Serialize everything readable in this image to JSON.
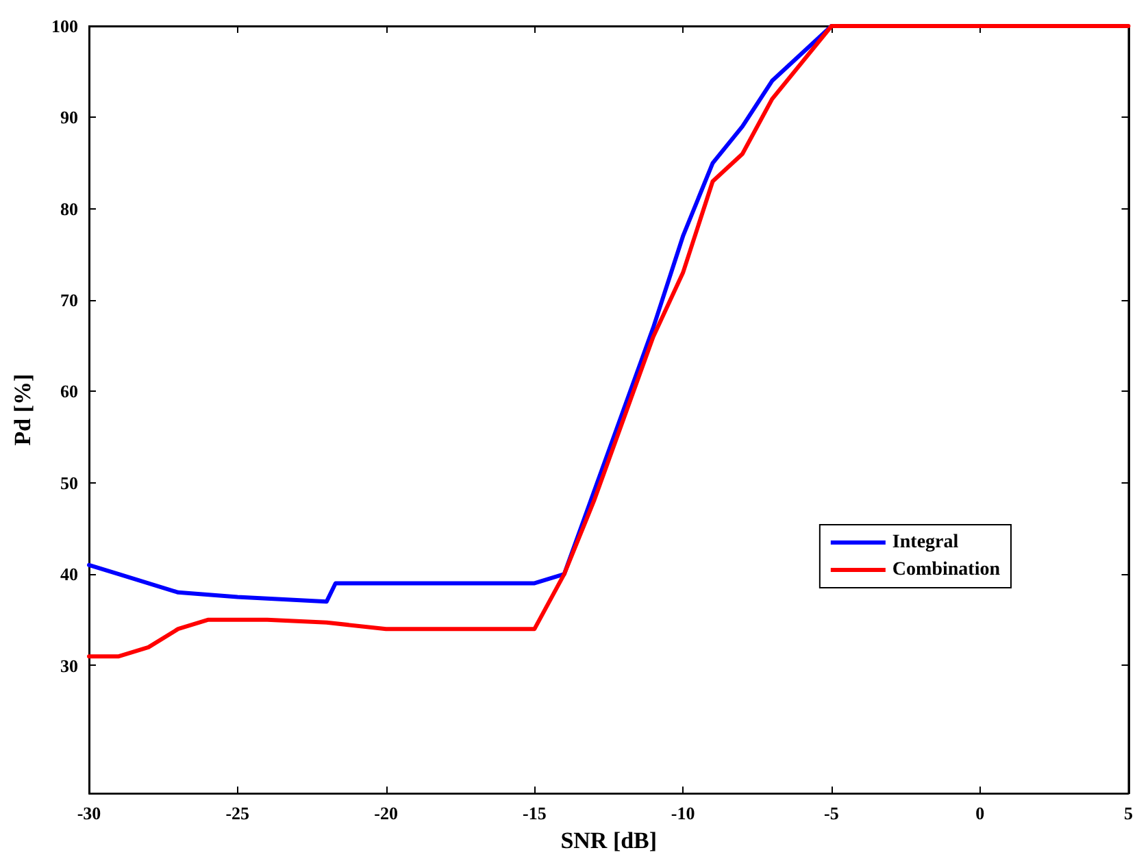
{
  "chart_data": {
    "type": "line",
    "xlabel": "SNR [dB]",
    "ylabel": "Pd [%]",
    "xlim": [
      -30,
      5
    ],
    "xticks": [
      -30,
      -25,
      -20,
      -15,
      -10,
      -5,
      0,
      5
    ],
    "ylim": [
      16,
      100
    ],
    "yticks": [
      30,
      40,
      50,
      60,
      70,
      80,
      90,
      100
    ],
    "grid": false,
    "legend": "right",
    "marker": "none",
    "line_style": "solid",
    "series": [
      {
        "name": "Integral",
        "color": "#0000ff",
        "x": [
          -30,
          -29,
          -27,
          -25,
          -22,
          -21.7,
          -15,
          -14,
          -13,
          -12,
          -11,
          -10,
          -9,
          -8,
          -7,
          -6,
          -5
        ],
        "values": [
          41,
          40,
          38,
          37.5,
          37,
          39,
          39,
          40,
          49,
          58,
          67,
          77,
          85,
          89,
          94,
          97,
          100
        ]
      },
      {
        "name": "Combination",
        "color": "#ff0000",
        "x": [
          -30,
          -29,
          -28,
          -27,
          -26,
          -24,
          -22,
          -20,
          -15,
          -14,
          -13,
          -12,
          -11,
          -10,
          -9,
          -8,
          -7,
          -6,
          -5,
          5
        ],
        "values": [
          31,
          31,
          32,
          34,
          35,
          35,
          34.7,
          34,
          34,
          40,
          48,
          57,
          66,
          73,
          83,
          86,
          92,
          96,
          100,
          100
        ]
      }
    ]
  }
}
